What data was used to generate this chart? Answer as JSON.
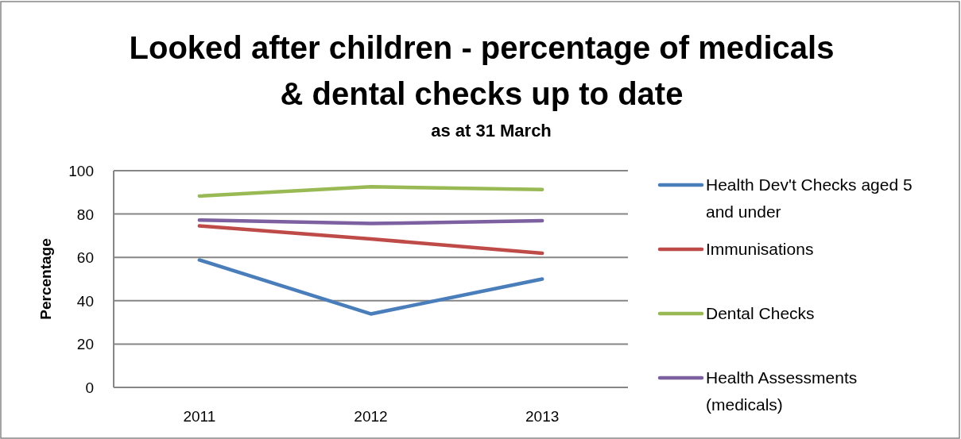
{
  "chart_data": {
    "type": "line",
    "title": "Looked after children - percentage of medicals & dental checks up to date",
    "subtitle": "as at 31 March",
    "ylabel": "Percentage",
    "categories": [
      "2011",
      "2012",
      "2013"
    ],
    "series": [
      {
        "name": "Health Dev't Checks aged 5 and under",
        "color": "#4a7ebb",
        "values": [
          58.8,
          33.9,
          50
        ]
      },
      {
        "name": "Immunisations",
        "color": "#be4b48",
        "values": [
          74.5,
          68.5,
          61.9
        ]
      },
      {
        "name": "Dental Checks",
        "color": "#98b954",
        "values": [
          88.3,
          92.6,
          91.3
        ]
      },
      {
        "name": "Health Assessments (medicals)",
        "color": "#7d60a0",
        "values": [
          77.2,
          75.6,
          76.9
        ]
      }
    ],
    "ylim": [
      0,
      100
    ],
    "yticks": [
      0,
      20,
      40,
      60,
      80,
      100
    ],
    "grid": "y",
    "legend": "right",
    "line_style": "solid"
  }
}
